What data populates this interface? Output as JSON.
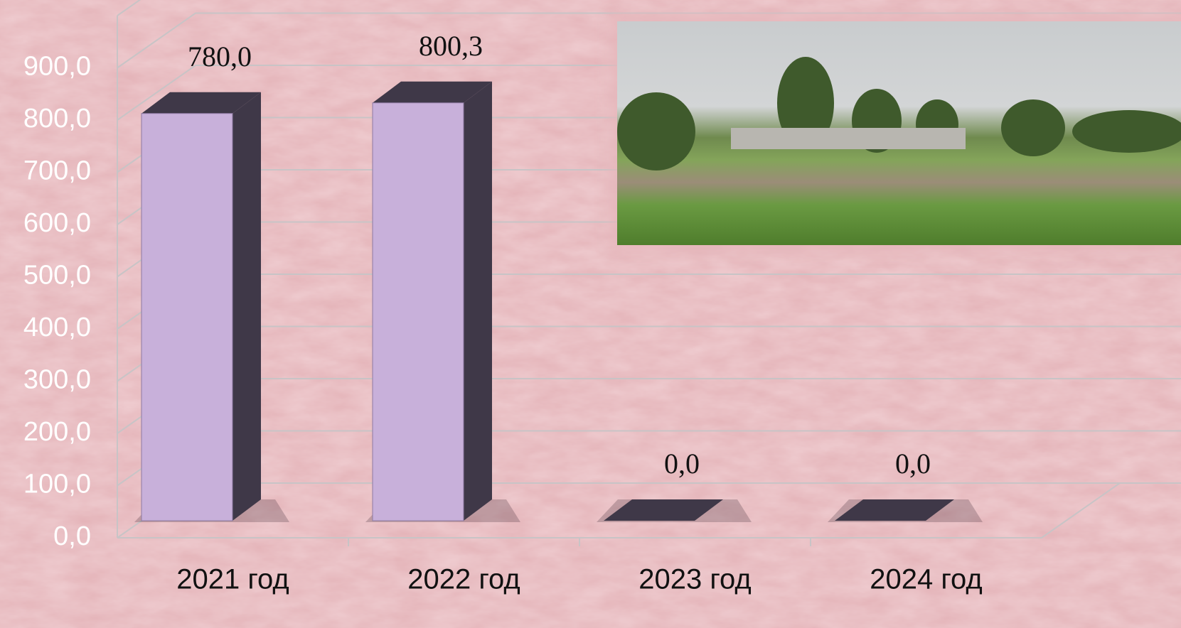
{
  "chart_data": {
    "type": "bar",
    "categories": [
      "2021 год",
      "2022 год",
      "2023 год",
      "2024 год"
    ],
    "values": [
      780,
      800.3,
      0,
      0
    ],
    "value_labels": [
      "780,0",
      "800,3",
      "0,0",
      "0,0"
    ],
    "color": "#c8b0da",
    "ylim": [
      0,
      1000
    ],
    "yticks": [
      {
        "value": 0,
        "label": "0,0"
      },
      {
        "value": 100,
        "label": "100,0"
      },
      {
        "value": 200,
        "label": "200,0"
      },
      {
        "value": 300,
        "label": "300,0"
      },
      {
        "value": 400,
        "label": "400,0"
      },
      {
        "value": 500,
        "label": "500,0"
      },
      {
        "value": 600,
        "label": "600,0"
      },
      {
        "value": 700,
        "label": "700,0"
      },
      {
        "value": 800,
        "label": "800,0"
      },
      {
        "value": 900,
        "label": "900,0"
      }
    ],
    "grid": true
  }
}
